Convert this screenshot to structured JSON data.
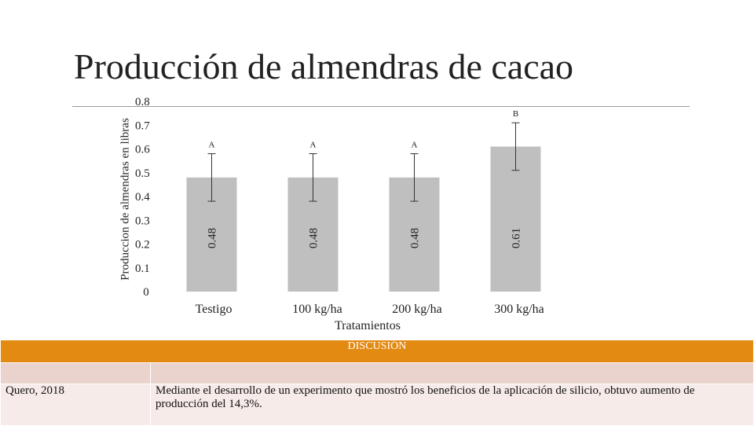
{
  "slide": {
    "title": "Producción de almendras de cacao"
  },
  "chart_data": {
    "type": "bar",
    "title": "",
    "xlabel": "Tratamientos",
    "ylabel": "Produccion de almendras en libras",
    "categories": [
      "Testigo",
      "100 kg/ha",
      "200 kg/ha",
      "300 kg/ha"
    ],
    "series": [
      {
        "values": [
          0.48,
          0.48,
          0.48,
          0.61
        ]
      }
    ],
    "data_labels": [
      "0.48",
      "0.48",
      "0.48",
      "0.61"
    ],
    "error_bars": [
      [
        0.38,
        0.58
      ],
      [
        0.38,
        0.58
      ],
      [
        0.38,
        0.58
      ],
      [
        0.51,
        0.71
      ]
    ],
    "significance_letters": [
      "A",
      "A",
      "A",
      "B"
    ],
    "ylim": [
      0,
      0.8
    ],
    "yticks": [
      "0",
      "0.1",
      "0.2",
      "0.3",
      "0.4",
      "0.5",
      "0.6",
      "0.7",
      "0.8"
    ],
    "bar_color": "#bfbfbf",
    "grid": false
  },
  "discussion": {
    "header": "DISCUSIÓN",
    "rows": [
      {
        "reference": "Quero, 2018",
        "text": "Mediante el desarrollo de un experimento que mostró los beneficios de la aplicación de silicio, obtuvo aumento de producción del 14,3%."
      }
    ],
    "header_color": "#e38a13"
  }
}
